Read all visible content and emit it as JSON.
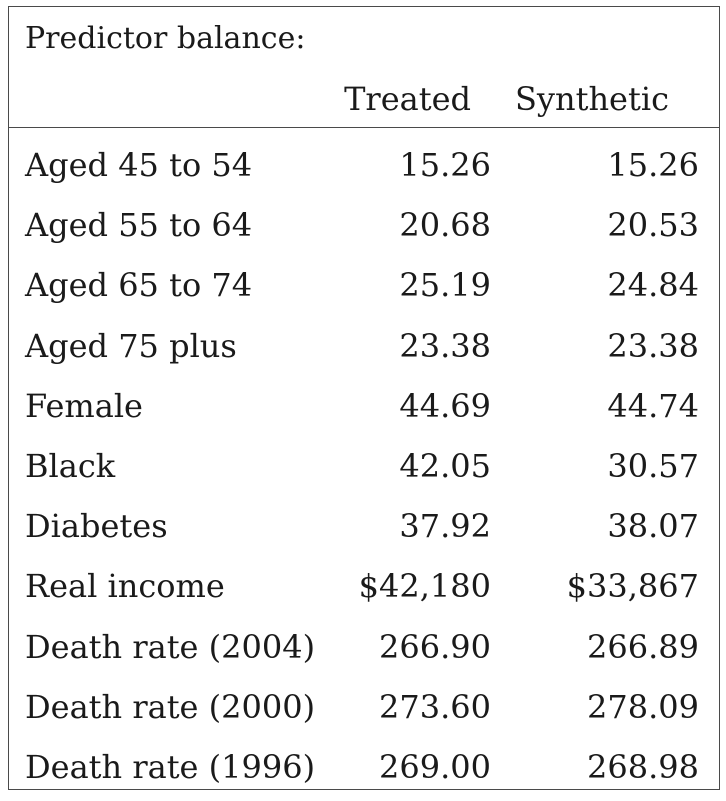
{
  "table": {
    "caption": "Predictor balance:",
    "columns": [
      "Treated",
      "Synthetic"
    ],
    "rows": [
      {
        "label": "Aged 45 to 54",
        "treated": "15.26",
        "synthetic": "15.26"
      },
      {
        "label": "Aged 55 to 64",
        "treated": "20.68",
        "synthetic": "20.53"
      },
      {
        "label": "Aged 65 to 74",
        "treated": "25.19",
        "synthetic": "24.84"
      },
      {
        "label": "Aged 75 plus",
        "treated": "23.38",
        "synthetic": "23.38"
      },
      {
        "label": "Female",
        "treated": "44.69",
        "synthetic": "44.74"
      },
      {
        "label": "Black",
        "treated": "42.05",
        "synthetic": "30.57"
      },
      {
        "label": "Diabetes",
        "treated": "37.92",
        "synthetic": "38.07"
      },
      {
        "label": "Real income",
        "treated": "$42,180",
        "synthetic": "$33,867"
      },
      {
        "label": "Death rate (2004)",
        "treated": "266.90",
        "synthetic": "266.89"
      },
      {
        "label": "Death rate (2000)",
        "treated": "273.60",
        "synthetic": "278.09"
      },
      {
        "label": "Death rate (1996)",
        "treated": "269.00",
        "synthetic": "268.98"
      }
    ]
  }
}
